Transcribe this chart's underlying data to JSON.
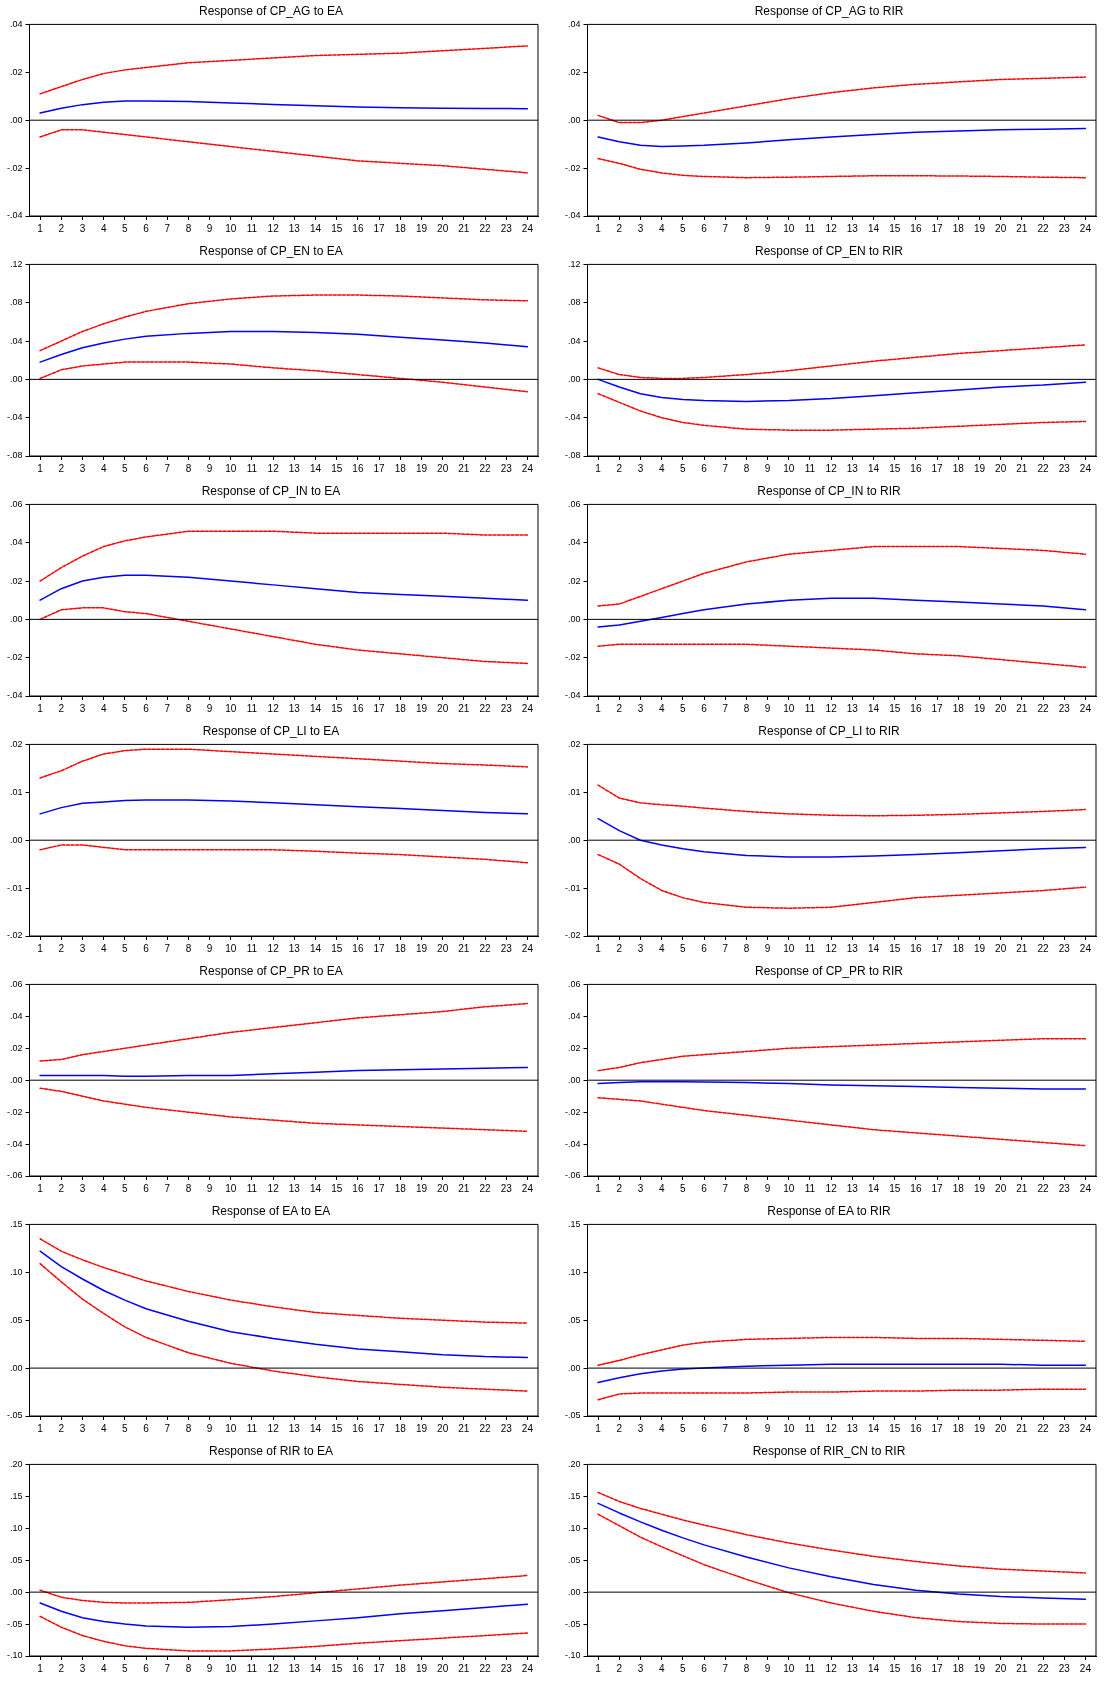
{
  "chart_data": [
    {
      "type": "line",
      "title": "Response of CP_AG to EA",
      "x": [
        1,
        2,
        3,
        4,
        5,
        6,
        8,
        10,
        12,
        14,
        16,
        18,
        20,
        22,
        24
      ],
      "xlim": [
        0.5,
        24.5
      ],
      "xticks": [
        1,
        2,
        3,
        4,
        5,
        6,
        7,
        8,
        9,
        10,
        11,
        12,
        13,
        14,
        15,
        16,
        17,
        18,
        19,
        20,
        21,
        22,
        23,
        24
      ],
      "ylim": [
        -0.04,
        0.04
      ],
      "yticks": [
        {
          "value": 0.04,
          "label": ".04"
        },
        {
          "value": 0.02,
          "label": ".02"
        },
        {
          "value": 0,
          "label": ".00"
        },
        {
          "value": -0.02,
          "label": "-.02"
        },
        {
          "value": -0.04,
          "label": "-.04"
        }
      ],
      "ref_lines": [
        {
          "axis": "y",
          "value": 0,
          "color": "#000000"
        }
      ],
      "series": [
        {
          "color": "#0000ff",
          "line_style": "solid",
          "values": [
            0.003,
            0.005,
            0.0065,
            0.0075,
            0.008,
            0.008,
            0.0078,
            0.0072,
            0.0066,
            0.006,
            0.0055,
            0.0052,
            0.005,
            0.0049,
            0.0048
          ]
        },
        {
          "color": "#ff0000",
          "line_style": "dashed",
          "values": [
            0.011,
            0.014,
            0.017,
            0.0195,
            0.021,
            0.022,
            0.024,
            0.025,
            0.026,
            0.027,
            0.0275,
            0.028,
            0.029,
            0.03,
            0.031
          ]
        },
        {
          "color": "#ff0000",
          "line_style": "dashed",
          "values": [
            -0.007,
            -0.004,
            -0.004,
            -0.005,
            -0.006,
            -0.007,
            -0.009,
            -0.011,
            -0.013,
            -0.015,
            -0.017,
            -0.018,
            -0.019,
            -0.0205,
            -0.022
          ]
        }
      ]
    },
    {
      "type": "line",
      "title": "Response of CP_AG to RIR",
      "x": [
        1,
        2,
        3,
        4,
        5,
        6,
        8,
        10,
        12,
        14,
        16,
        18,
        20,
        22,
        24
      ],
      "xlim": [
        0.5,
        24.5
      ],
      "xticks": [
        1,
        2,
        3,
        4,
        5,
        6,
        7,
        8,
        9,
        10,
        11,
        12,
        13,
        14,
        15,
        16,
        17,
        18,
        19,
        20,
        21,
        22,
        23,
        24
      ],
      "ylim": [
        -0.04,
        0.04
      ],
      "yticks": [
        {
          "value": 0.04,
          "label": ".04"
        },
        {
          "value": 0.02,
          "label": ".02"
        },
        {
          "value": 0,
          "label": ".00"
        },
        {
          "value": -0.02,
          "label": "-.02"
        },
        {
          "value": -0.04,
          "label": "-.04"
        }
      ],
      "ref_lines": [
        {
          "axis": "y",
          "value": 0,
          "color": "#000000"
        }
      ],
      "series": [
        {
          "color": "#0000ff",
          "line_style": "solid",
          "values": [
            -0.007,
            -0.009,
            -0.0105,
            -0.011,
            -0.0108,
            -0.0105,
            -0.0095,
            -0.0082,
            -0.007,
            -0.006,
            -0.005,
            -0.0045,
            -0.004,
            -0.0038,
            -0.0035
          ]
        },
        {
          "color": "#ff0000",
          "line_style": "dashed",
          "values": [
            0.002,
            -0.001,
            -0.001,
            0,
            0.0015,
            0.003,
            0.006,
            0.009,
            0.0115,
            0.0135,
            0.015,
            0.016,
            0.017,
            0.0175,
            0.018
          ]
        },
        {
          "color": "#ff0000",
          "line_style": "dashed",
          "values": [
            -0.016,
            -0.018,
            -0.0205,
            -0.022,
            -0.023,
            -0.0235,
            -0.024,
            -0.0238,
            -0.0235,
            -0.0232,
            -0.0232,
            -0.0233,
            -0.0235,
            -0.0238,
            -0.024
          ]
        }
      ]
    },
    {
      "type": "line",
      "title": "Response of CP_EN to EA",
      "x": [
        1,
        2,
        3,
        4,
        5,
        6,
        8,
        10,
        12,
        14,
        16,
        18,
        20,
        22,
        24
      ],
      "xlim": [
        0.5,
        24.5
      ],
      "xticks": [
        1,
        2,
        3,
        4,
        5,
        6,
        7,
        8,
        9,
        10,
        11,
        12,
        13,
        14,
        15,
        16,
        17,
        18,
        19,
        20,
        21,
        22,
        23,
        24
      ],
      "ylim": [
        -0.08,
        0.12
      ],
      "yticks": [
        {
          "value": 0.12,
          "label": ".12"
        },
        {
          "value": 0.08,
          "label": ".08"
        },
        {
          "value": 0.04,
          "label": ".04"
        },
        {
          "value": 0,
          "label": ".00"
        },
        {
          "value": -0.04,
          "label": "-.04"
        },
        {
          "value": -0.08,
          "label": "-.08"
        }
      ],
      "ref_lines": [
        {
          "axis": "y",
          "value": 0,
          "color": "#000000"
        }
      ],
      "series": [
        {
          "color": "#0000ff",
          "line_style": "solid",
          "values": [
            0.018,
            0.026,
            0.033,
            0.038,
            0.042,
            0.045,
            0.048,
            0.05,
            0.05,
            0.049,
            0.047,
            0.044,
            0.041,
            0.038,
            0.034
          ]
        },
        {
          "color": "#ff0000",
          "line_style": "dashed",
          "values": [
            0.03,
            0.04,
            0.05,
            0.058,
            0.065,
            0.071,
            0.079,
            0.084,
            0.087,
            0.088,
            0.088,
            0.087,
            0.085,
            0.083,
            0.082
          ]
        },
        {
          "color": "#ff0000",
          "line_style": "dashed",
          "values": [
            0.001,
            0.01,
            0.014,
            0.016,
            0.018,
            0.018,
            0.018,
            0.016,
            0.012,
            0.009,
            0.005,
            0.001,
            -0.003,
            -0.008,
            -0.013
          ]
        }
      ]
    },
    {
      "type": "line",
      "title": "Response of CP_EN to RIR",
      "x": [
        1,
        2,
        3,
        4,
        5,
        6,
        8,
        10,
        12,
        14,
        16,
        18,
        20,
        22,
        24
      ],
      "xlim": [
        0.5,
        24.5
      ],
      "xticks": [
        1,
        2,
        3,
        4,
        5,
        6,
        7,
        8,
        9,
        10,
        11,
        12,
        13,
        14,
        15,
        16,
        17,
        18,
        19,
        20,
        21,
        22,
        23,
        24
      ],
      "ylim": [
        -0.08,
        0.12
      ],
      "yticks": [
        {
          "value": 0.12,
          "label": ".12"
        },
        {
          "value": 0.08,
          "label": ".08"
        },
        {
          "value": 0.04,
          "label": ".04"
        },
        {
          "value": 0,
          "label": ".00"
        },
        {
          "value": -0.04,
          "label": "-.04"
        },
        {
          "value": -0.08,
          "label": "-.08"
        }
      ],
      "ref_lines": [
        {
          "axis": "y",
          "value": 0,
          "color": "#000000"
        }
      ],
      "series": [
        {
          "color": "#0000ff",
          "line_style": "solid",
          "values": [
            0,
            -0.008,
            -0.015,
            -0.019,
            -0.021,
            -0.022,
            -0.023,
            -0.022,
            -0.02,
            -0.017,
            -0.014,
            -0.011,
            -0.008,
            -0.006,
            -0.003
          ]
        },
        {
          "color": "#ff0000",
          "line_style": "dashed",
          "values": [
            0.012,
            0.005,
            0.002,
            0.001,
            0.001,
            0.002,
            0.005,
            0.009,
            0.014,
            0.019,
            0.023,
            0.027,
            0.03,
            0.033,
            0.036
          ]
        },
        {
          "color": "#ff0000",
          "line_style": "dashed",
          "values": [
            -0.015,
            -0.024,
            -0.033,
            -0.04,
            -0.045,
            -0.048,
            -0.052,
            -0.053,
            -0.053,
            -0.052,
            -0.051,
            -0.049,
            -0.047,
            -0.045,
            -0.044
          ]
        }
      ]
    },
    {
      "type": "line",
      "title": "Response of CP_IN to EA",
      "x": [
        1,
        2,
        3,
        4,
        5,
        6,
        8,
        10,
        12,
        14,
        16,
        18,
        20,
        22,
        24
      ],
      "xlim": [
        0.5,
        24.5
      ],
      "xticks": [
        1,
        2,
        3,
        4,
        5,
        6,
        7,
        8,
        9,
        10,
        11,
        12,
        13,
        14,
        15,
        16,
        17,
        18,
        19,
        20,
        21,
        22,
        23,
        24
      ],
      "ylim": [
        -0.04,
        0.06
      ],
      "yticks": [
        {
          "value": 0.06,
          "label": ".06"
        },
        {
          "value": 0.04,
          "label": ".04"
        },
        {
          "value": 0.02,
          "label": ".02"
        },
        {
          "value": 0,
          "label": ".00"
        },
        {
          "value": -0.02,
          "label": "-.02"
        },
        {
          "value": -0.04,
          "label": "-.04"
        }
      ],
      "ref_lines": [
        {
          "axis": "y",
          "value": 0,
          "color": "#000000"
        }
      ],
      "series": [
        {
          "color": "#0000ff",
          "line_style": "solid",
          "values": [
            0.01,
            0.016,
            0.02,
            0.022,
            0.023,
            0.023,
            0.022,
            0.02,
            0.018,
            0.016,
            0.014,
            0.013,
            0.012,
            0.011,
            0.01
          ]
        },
        {
          "color": "#ff0000",
          "line_style": "dashed",
          "values": [
            0.02,
            0.027,
            0.033,
            0.038,
            0.041,
            0.043,
            0.046,
            0.046,
            0.046,
            0.045,
            0.045,
            0.045,
            0.045,
            0.044,
            0.044
          ]
        },
        {
          "color": "#ff0000",
          "line_style": "dashed",
          "values": [
            0,
            0.005,
            0.006,
            0.006,
            0.004,
            0.003,
            -0.001,
            -0.005,
            -0.009,
            -0.013,
            -0.016,
            -0.018,
            -0.02,
            -0.022,
            -0.023
          ]
        }
      ]
    },
    {
      "type": "line",
      "title": "Response of CP_IN to RIR",
      "x": [
        1,
        2,
        3,
        4,
        5,
        6,
        8,
        10,
        12,
        14,
        16,
        18,
        20,
        22,
        24
      ],
      "xlim": [
        0.5,
        24.5
      ],
      "xticks": [
        1,
        2,
        3,
        4,
        5,
        6,
        7,
        8,
        9,
        10,
        11,
        12,
        13,
        14,
        15,
        16,
        17,
        18,
        19,
        20,
        21,
        22,
        23,
        24
      ],
      "ylim": [
        -0.04,
        0.06
      ],
      "yticks": [
        {
          "value": 0.06,
          "label": ".06"
        },
        {
          "value": 0.04,
          "label": ".04"
        },
        {
          "value": 0.02,
          "label": ".02"
        },
        {
          "value": 0,
          "label": ".00"
        },
        {
          "value": -0.02,
          "label": "-.02"
        },
        {
          "value": -0.04,
          "label": "-.04"
        }
      ],
      "ref_lines": [
        {
          "axis": "y",
          "value": 0,
          "color": "#000000"
        }
      ],
      "series": [
        {
          "color": "#0000ff",
          "line_style": "solid",
          "values": [
            -0.004,
            -0.003,
            -0.001,
            0.001,
            0.003,
            0.005,
            0.008,
            0.01,
            0.011,
            0.011,
            0.01,
            0.009,
            0.008,
            0.007,
            0.005
          ]
        },
        {
          "color": "#ff0000",
          "line_style": "dashed",
          "values": [
            0.007,
            0.008,
            0.012,
            0.016,
            0.02,
            0.024,
            0.03,
            0.034,
            0.036,
            0.038,
            0.038,
            0.038,
            0.037,
            0.036,
            0.034
          ]
        },
        {
          "color": "#ff0000",
          "line_style": "dashed",
          "values": [
            -0.014,
            -0.013,
            -0.013,
            -0.013,
            -0.013,
            -0.013,
            -0.013,
            -0.014,
            -0.015,
            -0.016,
            -0.018,
            -0.019,
            -0.021,
            -0.023,
            -0.025
          ]
        }
      ]
    },
    {
      "type": "line",
      "title": "Response of CP_LI to EA",
      "x": [
        1,
        2,
        3,
        4,
        5,
        6,
        8,
        10,
        12,
        14,
        16,
        18,
        20,
        22,
        24
      ],
      "xlim": [
        0.5,
        24.5
      ],
      "xticks": [
        1,
        2,
        3,
        4,
        5,
        6,
        7,
        8,
        9,
        10,
        11,
        12,
        13,
        14,
        15,
        16,
        17,
        18,
        19,
        20,
        21,
        22,
        23,
        24
      ],
      "ylim": [
        -0.02,
        0.02
      ],
      "yticks": [
        {
          "value": 0.02,
          "label": ".02"
        },
        {
          "value": 0.01,
          "label": ".01"
        },
        {
          "value": 0,
          "label": ".00"
        },
        {
          "value": -0.01,
          "label": "-.01"
        },
        {
          "value": -0.02,
          "label": "-.02"
        }
      ],
      "ref_lines": [
        {
          "axis": "y",
          "value": 0,
          "color": "#000000"
        }
      ],
      "series": [
        {
          "color": "#0000ff",
          "line_style": "solid",
          "values": [
            0.0055,
            0.0068,
            0.0077,
            0.008,
            0.0083,
            0.0084,
            0.0084,
            0.0082,
            0.0078,
            0.0074,
            0.007,
            0.0066,
            0.0062,
            0.0058,
            0.0055
          ]
        },
        {
          "color": "#ff0000",
          "line_style": "dashed",
          "values": [
            0.013,
            0.0145,
            0.0165,
            0.018,
            0.0187,
            0.019,
            0.019,
            0.0185,
            0.018,
            0.0175,
            0.017,
            0.0165,
            0.016,
            0.0157,
            0.0153
          ]
        },
        {
          "color": "#ff0000",
          "line_style": "dashed",
          "values": [
            -0.002,
            -0.001,
            -0.001,
            -0.0015,
            -0.002,
            -0.002,
            -0.002,
            -0.002,
            -0.002,
            -0.0023,
            -0.0027,
            -0.003,
            -0.0035,
            -0.004,
            -0.0047
          ]
        }
      ]
    },
    {
      "type": "line",
      "title": "Response of CP_LI to RIR",
      "x": [
        1,
        2,
        3,
        4,
        5,
        6,
        8,
        10,
        12,
        14,
        16,
        18,
        20,
        22,
        24
      ],
      "xlim": [
        0.5,
        24.5
      ],
      "xticks": [
        1,
        2,
        3,
        4,
        5,
        6,
        7,
        8,
        9,
        10,
        11,
        12,
        13,
        14,
        15,
        16,
        17,
        18,
        19,
        20,
        21,
        22,
        23,
        24
      ],
      "ylim": [
        -0.02,
        0.02
      ],
      "yticks": [
        {
          "value": 0.02,
          "label": ".02"
        },
        {
          "value": 0.01,
          "label": ".01"
        },
        {
          "value": 0,
          "label": ".00"
        },
        {
          "value": -0.01,
          "label": "-.01"
        },
        {
          "value": -0.02,
          "label": "-.02"
        }
      ],
      "ref_lines": [
        {
          "axis": "y",
          "value": 0,
          "color": "#000000"
        }
      ],
      "series": [
        {
          "color": "#0000ff",
          "line_style": "solid",
          "values": [
            0.0045,
            0.002,
            0,
            -0.001,
            -0.0018,
            -0.0024,
            -0.0032,
            -0.0035,
            -0.0035,
            -0.0033,
            -0.003,
            -0.0026,
            -0.0022,
            -0.0018,
            -0.0015
          ]
        },
        {
          "color": "#ff0000",
          "line_style": "dashed",
          "values": [
            0.0115,
            0.0088,
            0.0078,
            0.0074,
            0.0071,
            0.0067,
            0.006,
            0.0055,
            0.0052,
            0.0051,
            0.0052,
            0.0054,
            0.0057,
            0.006,
            0.0064
          ]
        },
        {
          "color": "#ff0000",
          "line_style": "dashed",
          "values": [
            -0.003,
            -0.005,
            -0.008,
            -0.0105,
            -0.012,
            -0.013,
            -0.014,
            -0.0142,
            -0.014,
            -0.013,
            -0.012,
            -0.0115,
            -0.011,
            -0.0105,
            -0.0098
          ]
        }
      ]
    },
    {
      "type": "line",
      "title": "Response of CP_PR to EA",
      "x": [
        1,
        2,
        3,
        4,
        5,
        6,
        8,
        10,
        12,
        14,
        16,
        18,
        20,
        22,
        24
      ],
      "xlim": [
        0.5,
        24.5
      ],
      "xticks": [
        1,
        2,
        3,
        4,
        5,
        6,
        7,
        8,
        9,
        10,
        11,
        12,
        13,
        14,
        15,
        16,
        17,
        18,
        19,
        20,
        21,
        22,
        23,
        24
      ],
      "ylim": [
        -0.06,
        0.06
      ],
      "yticks": [
        {
          "value": 0.06,
          "label": ".06"
        },
        {
          "value": 0.04,
          "label": ".04"
        },
        {
          "value": 0.02,
          "label": ".02"
        },
        {
          "value": 0,
          "label": ".00"
        },
        {
          "value": -0.02,
          "label": "-.02"
        },
        {
          "value": -0.04,
          "label": "-.04"
        },
        {
          "value": -0.06,
          "label": "-.06"
        }
      ],
      "ref_lines": [
        {
          "axis": "y",
          "value": 0,
          "color": "#000000"
        }
      ],
      "series": [
        {
          "color": "#0000ff",
          "line_style": "solid",
          "values": [
            0.003,
            0.003,
            0.003,
            0.003,
            0.0025,
            0.0025,
            0.003,
            0.003,
            0.004,
            0.005,
            0.006,
            0.0065,
            0.007,
            0.0075,
            0.008
          ]
        },
        {
          "color": "#ff0000",
          "line_style": "dashed",
          "values": [
            0.012,
            0.013,
            0.016,
            0.018,
            0.02,
            0.022,
            0.026,
            0.03,
            0.033,
            0.036,
            0.039,
            0.041,
            0.043,
            0.046,
            0.048
          ]
        },
        {
          "color": "#ff0000",
          "line_style": "dashed",
          "values": [
            -0.005,
            -0.007,
            -0.01,
            -0.013,
            -0.015,
            -0.017,
            -0.02,
            -0.023,
            -0.025,
            -0.027,
            -0.028,
            -0.029,
            -0.03,
            -0.031,
            -0.032
          ]
        }
      ]
    },
    {
      "type": "line",
      "title": "Response of CP_PR to RIR",
      "x": [
        1,
        2,
        3,
        4,
        5,
        6,
        8,
        10,
        12,
        14,
        16,
        18,
        20,
        22,
        24
      ],
      "xlim": [
        0.5,
        24.5
      ],
      "xticks": [
        1,
        2,
        3,
        4,
        5,
        6,
        7,
        8,
        9,
        10,
        11,
        12,
        13,
        14,
        15,
        16,
        17,
        18,
        19,
        20,
        21,
        22,
        23,
        24
      ],
      "ylim": [
        -0.06,
        0.06
      ],
      "yticks": [
        {
          "value": 0.06,
          "label": ".06"
        },
        {
          "value": 0.04,
          "label": ".04"
        },
        {
          "value": 0.02,
          "label": ".02"
        },
        {
          "value": 0,
          "label": ".00"
        },
        {
          "value": -0.02,
          "label": "-.02"
        },
        {
          "value": -0.04,
          "label": "-.04"
        },
        {
          "value": -0.06,
          "label": "-.06"
        }
      ],
      "ref_lines": [
        {
          "axis": "y",
          "value": 0,
          "color": "#000000"
        }
      ],
      "series": [
        {
          "color": "#0000ff",
          "line_style": "solid",
          "values": [
            -0.002,
            -0.0015,
            -0.001,
            -0.001,
            -0.001,
            -0.0012,
            -0.0015,
            -0.002,
            -0.003,
            -0.0035,
            -0.004,
            -0.0045,
            -0.005,
            -0.0055,
            -0.0055
          ]
        },
        {
          "color": "#ff0000",
          "line_style": "dashed",
          "values": [
            0.006,
            0.008,
            0.011,
            0.013,
            0.015,
            0.016,
            0.018,
            0.02,
            0.021,
            0.022,
            0.023,
            0.024,
            0.025,
            0.026,
            0.026
          ]
        },
        {
          "color": "#ff0000",
          "line_style": "dashed",
          "values": [
            -0.011,
            -0.012,
            -0.013,
            -0.015,
            -0.017,
            -0.019,
            -0.022,
            -0.025,
            -0.028,
            -0.031,
            -0.033,
            -0.035,
            -0.037,
            -0.039,
            -0.041
          ]
        }
      ]
    },
    {
      "type": "line",
      "title": "Response of EA to EA",
      "x": [
        1,
        2,
        3,
        4,
        5,
        6,
        8,
        10,
        12,
        14,
        16,
        18,
        20,
        22,
        24
      ],
      "xlim": [
        0.5,
        24.5
      ],
      "xticks": [
        1,
        2,
        3,
        4,
        5,
        6,
        7,
        8,
        9,
        10,
        11,
        12,
        13,
        14,
        15,
        16,
        17,
        18,
        19,
        20,
        21,
        22,
        23,
        24
      ],
      "ylim": [
        -0.05,
        0.15
      ],
      "yticks": [
        {
          "value": 0.15,
          "label": ".15"
        },
        {
          "value": 0.1,
          "label": ".10"
        },
        {
          "value": 0.05,
          "label": ".05"
        },
        {
          "value": 0,
          "label": ".00"
        },
        {
          "value": -0.05,
          "label": "-.05"
        }
      ],
      "ref_lines": [
        {
          "axis": "y",
          "value": 0,
          "color": "#000000"
        }
      ],
      "series": [
        {
          "color": "#0000ff",
          "line_style": "solid",
          "values": [
            0.122,
            0.106,
            0.093,
            0.081,
            0.071,
            0.062,
            0.049,
            0.038,
            0.031,
            0.025,
            0.02,
            0.017,
            0.014,
            0.012,
            0.011
          ]
        },
        {
          "color": "#ff0000",
          "line_style": "dashed",
          "values": [
            0.135,
            0.122,
            0.113,
            0.105,
            0.098,
            0.091,
            0.08,
            0.071,
            0.064,
            0.058,
            0.055,
            0.052,
            0.05,
            0.048,
            0.047
          ]
        },
        {
          "color": "#ff0000",
          "line_style": "dashed",
          "values": [
            0.109,
            0.09,
            0.072,
            0.057,
            0.043,
            0.032,
            0.016,
            0.005,
            -0.003,
            -0.009,
            -0.014,
            -0.017,
            -0.02,
            -0.022,
            -0.024
          ]
        }
      ]
    },
    {
      "type": "line",
      "title": "Response of EA to RIR",
      "x": [
        1,
        2,
        3,
        4,
        5,
        6,
        8,
        10,
        12,
        14,
        16,
        18,
        20,
        22,
        24
      ],
      "xlim": [
        0.5,
        24.5
      ],
      "xticks": [
        1,
        2,
        3,
        4,
        5,
        6,
        7,
        8,
        9,
        10,
        11,
        12,
        13,
        14,
        15,
        16,
        17,
        18,
        19,
        20,
        21,
        22,
        23,
        24
      ],
      "ylim": [
        -0.05,
        0.15
      ],
      "yticks": [
        {
          "value": 0.15,
          "label": ".15"
        },
        {
          "value": 0.1,
          "label": ".10"
        },
        {
          "value": 0.05,
          "label": ".05"
        },
        {
          "value": 0,
          "label": ".00"
        },
        {
          "value": -0.05,
          "label": "-.05"
        }
      ],
      "ref_lines": [
        {
          "axis": "y",
          "value": 0,
          "color": "#000000"
        }
      ],
      "series": [
        {
          "color": "#0000ff",
          "line_style": "solid",
          "values": [
            -0.015,
            -0.01,
            -0.006,
            -0.003,
            -0.001,
            0,
            0.002,
            0.003,
            0.004,
            0.004,
            0.004,
            0.004,
            0.004,
            0.003,
            0.003
          ]
        },
        {
          "color": "#ff0000",
          "line_style": "dashed",
          "values": [
            0.003,
            0.008,
            0.014,
            0.019,
            0.024,
            0.027,
            0.03,
            0.031,
            0.032,
            0.032,
            0.031,
            0.031,
            0.03,
            0.029,
            0.028
          ]
        },
        {
          "color": "#ff0000",
          "line_style": "dashed",
          "values": [
            -0.033,
            -0.027,
            -0.026,
            -0.026,
            -0.026,
            -0.026,
            -0.026,
            -0.025,
            -0.025,
            -0.024,
            -0.024,
            -0.023,
            -0.023,
            -0.022,
            -0.022
          ]
        }
      ]
    },
    {
      "type": "line",
      "title": "Response of RIR to EA",
      "x": [
        1,
        2,
        3,
        4,
        5,
        6,
        8,
        10,
        12,
        14,
        16,
        18,
        20,
        22,
        24
      ],
      "xlim": [
        0.5,
        24.5
      ],
      "xticks": [
        1,
        2,
        3,
        4,
        5,
        6,
        7,
        8,
        9,
        10,
        11,
        12,
        13,
        14,
        15,
        16,
        17,
        18,
        19,
        20,
        21,
        22,
        23,
        24
      ],
      "ylim": [
        -0.1,
        0.2
      ],
      "yticks": [
        {
          "value": 0.2,
          "label": ".20"
        },
        {
          "value": 0.15,
          "label": ".15"
        },
        {
          "value": 0.1,
          "label": ".10"
        },
        {
          "value": 0.05,
          "label": ".05"
        },
        {
          "value": 0,
          "label": ".00"
        },
        {
          "value": -0.05,
          "label": "-.05"
        },
        {
          "value": -0.1,
          "label": "-.10"
        }
      ],
      "ref_lines": [
        {
          "axis": "y",
          "value": 0,
          "color": "#000000"
        }
      ],
      "series": [
        {
          "color": "#0000ff",
          "line_style": "solid",
          "values": [
            -0.017,
            -0.03,
            -0.04,
            -0.046,
            -0.05,
            -0.053,
            -0.055,
            -0.054,
            -0.05,
            -0.045,
            -0.04,
            -0.034,
            -0.029,
            -0.024,
            -0.019
          ]
        },
        {
          "color": "#ff0000",
          "line_style": "dashed",
          "values": [
            0.003,
            -0.008,
            -0.013,
            -0.016,
            -0.017,
            -0.017,
            -0.016,
            -0.012,
            -0.007,
            -0.001,
            0.005,
            0.011,
            0.016,
            0.021,
            0.026
          ]
        },
        {
          "color": "#ff0000",
          "line_style": "dashed",
          "values": [
            -0.038,
            -0.055,
            -0.068,
            -0.077,
            -0.084,
            -0.088,
            -0.092,
            -0.092,
            -0.089,
            -0.085,
            -0.08,
            -0.076,
            -0.072,
            -0.068,
            -0.064
          ]
        }
      ]
    },
    {
      "type": "line",
      "title": "Response of RIR_CN to RIR",
      "x": [
        1,
        2,
        3,
        4,
        5,
        6,
        8,
        10,
        12,
        14,
        16,
        18,
        20,
        22,
        24
      ],
      "xlim": [
        0.5,
        24.5
      ],
      "xticks": [
        1,
        2,
        3,
        4,
        5,
        6,
        7,
        8,
        9,
        10,
        11,
        12,
        13,
        14,
        15,
        16,
        17,
        18,
        19,
        20,
        21,
        22,
        23,
        24
      ],
      "ylim": [
        -0.1,
        0.2
      ],
      "yticks": [
        {
          "value": 0.2,
          "label": ".20"
        },
        {
          "value": 0.15,
          "label": ".15"
        },
        {
          "value": 0.1,
          "label": ".10"
        },
        {
          "value": 0.05,
          "label": ".05"
        },
        {
          "value": 0,
          "label": ".00"
        },
        {
          "value": -0.05,
          "label": "-.05"
        },
        {
          "value": -0.1,
          "label": "-.10"
        }
      ],
      "ref_lines": [
        {
          "axis": "y",
          "value": 0,
          "color": "#000000"
        }
      ],
      "series": [
        {
          "color": "#0000ff",
          "line_style": "solid",
          "values": [
            0.139,
            0.124,
            0.11,
            0.097,
            0.085,
            0.074,
            0.055,
            0.038,
            0.024,
            0.012,
            0.003,
            -0.003,
            -0.007,
            -0.009,
            -0.011
          ]
        },
        {
          "color": "#ff0000",
          "line_style": "dashed",
          "values": [
            0.156,
            0.142,
            0.131,
            0.122,
            0.113,
            0.105,
            0.09,
            0.077,
            0.066,
            0.056,
            0.048,
            0.041,
            0.036,
            0.033,
            0.03
          ]
        },
        {
          "color": "#ff0000",
          "line_style": "dashed",
          "values": [
            0.122,
            0.104,
            0.086,
            0.071,
            0.057,
            0.043,
            0.02,
            -0.001,
            -0.017,
            -0.03,
            -0.04,
            -0.046,
            -0.049,
            -0.05,
            -0.05
          ]
        }
      ]
    }
  ]
}
